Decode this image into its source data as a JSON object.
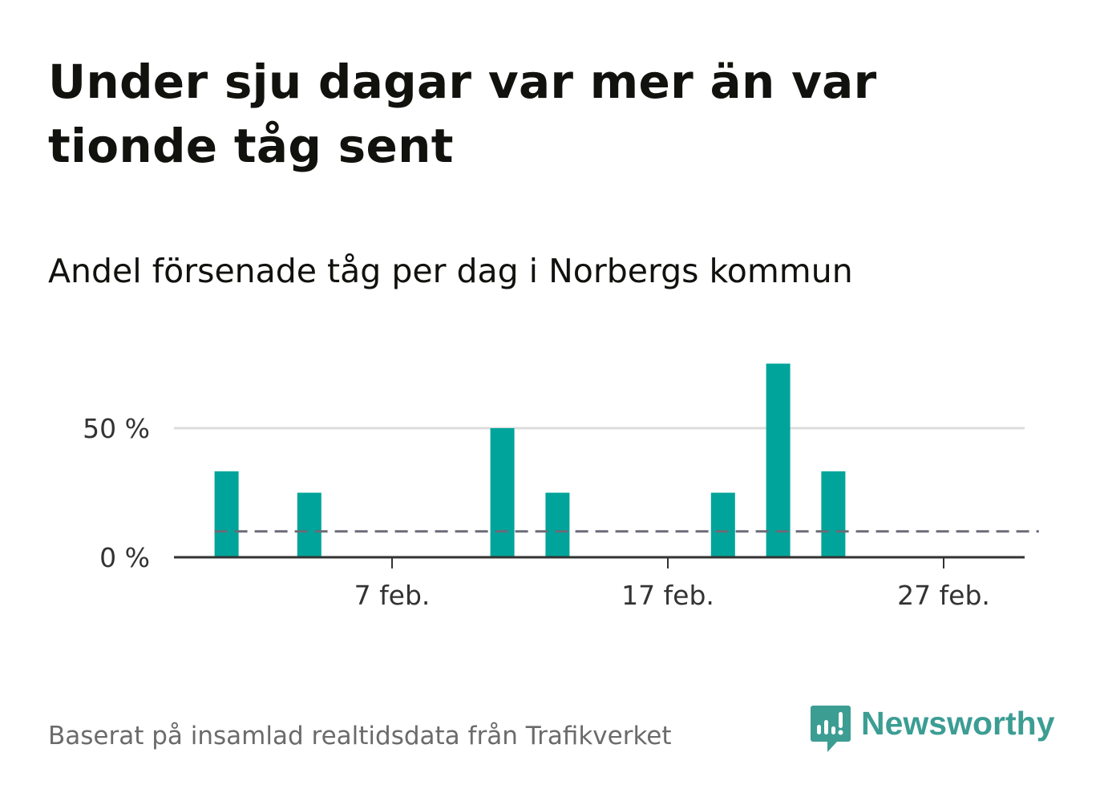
{
  "title": "Under sju dagar var mer än var tionde tåg sent",
  "subtitle": "Andel försenade tåg per dag i Norbergs kommun",
  "footer": "Baserat på insamlad realtidsdata från Trafikverket",
  "brand": {
    "name": "Newsworthy",
    "color": "#3c9d93"
  },
  "chart_data": {
    "type": "bar",
    "x": [
      "2024-02-01",
      "2024-02-02",
      "2024-02-03",
      "2024-02-04",
      "2024-02-05",
      "2024-02-06",
      "2024-02-07",
      "2024-02-08",
      "2024-02-09",
      "2024-02-10",
      "2024-02-11",
      "2024-02-12",
      "2024-02-13",
      "2024-02-14",
      "2024-02-15",
      "2024-02-16",
      "2024-02-17",
      "2024-02-18",
      "2024-02-19",
      "2024-02-20",
      "2024-02-21",
      "2024-02-22",
      "2024-02-23",
      "2024-02-24",
      "2024-02-25",
      "2024-02-26",
      "2024-02-27",
      "2024-02-28",
      "2024-02-29"
    ],
    "values": [
      33.3,
      0,
      0,
      25,
      0,
      0,
      0,
      0,
      0,
      0,
      50,
      0,
      25,
      0,
      0,
      0,
      0,
      0,
      25,
      0,
      75,
      0,
      33.3,
      0,
      0,
      0,
      0,
      0,
      0
    ],
    "reference_line": {
      "value": 10,
      "style": "dashed"
    },
    "ylim": [
      0,
      80
    ],
    "yticks": [
      {
        "value": 0,
        "label": "0 %"
      },
      {
        "value": 50,
        "label": "50 %"
      }
    ],
    "xticks": [
      {
        "value": "2024-02-07",
        "label": "7 feb."
      },
      {
        "value": "2024-02-17",
        "label": "17 feb."
      },
      {
        "value": "2024-02-27",
        "label": "27 feb."
      }
    ],
    "grid": true,
    "colors": {
      "bar": "#00a49a",
      "reference": "#6b6b78",
      "grid": "#dcdcdc",
      "axis": "#333333"
    }
  }
}
